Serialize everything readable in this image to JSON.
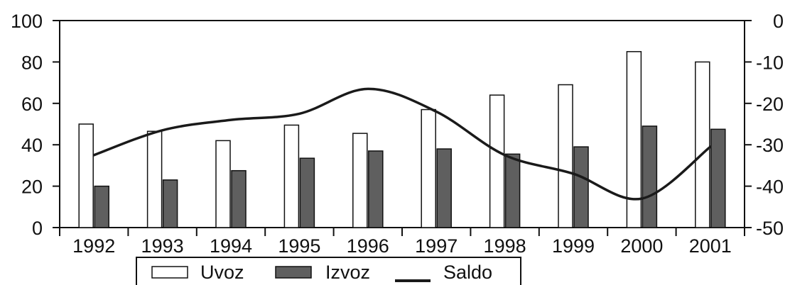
{
  "chart_data": {
    "type": "bar",
    "categories": [
      "1992",
      "1993",
      "1994",
      "1995",
      "1996",
      "1997",
      "1998",
      "1999",
      "2000",
      "2001"
    ],
    "series": [
      {
        "name": "Uvoz",
        "type": "bar",
        "axis": "left",
        "color": "#ffffff",
        "values": [
          50,
          46.5,
          42,
          49.5,
          45.5,
          57,
          64,
          69,
          85,
          80
        ]
      },
      {
        "name": "Izvoz",
        "type": "bar",
        "axis": "left",
        "color": "#5f5f5f",
        "values": [
          20,
          23,
          27.5,
          33.5,
          37,
          38,
          35.5,
          39,
          49,
          47.5
        ]
      },
      {
        "name": "Saldo",
        "type": "line",
        "axis": "right",
        "color": "#1a1a1a",
        "values": [
          -32.5,
          -26.5,
          -24,
          -22.5,
          -16.5,
          -22,
          -32.5,
          -37,
          -43,
          -30.5
        ]
      }
    ],
    "y_left": {
      "range": [
        0,
        100
      ],
      "ticks": [
        0,
        20,
        40,
        60,
        80,
        100
      ]
    },
    "y_right": {
      "range": [
        -50,
        0
      ],
      "ticks": [
        0,
        -10,
        -20,
        -30,
        -40,
        -50
      ]
    },
    "title": "",
    "xlabel": "",
    "ylabel": "",
    "grid": false,
    "legend": {
      "position": "bottom"
    }
  }
}
